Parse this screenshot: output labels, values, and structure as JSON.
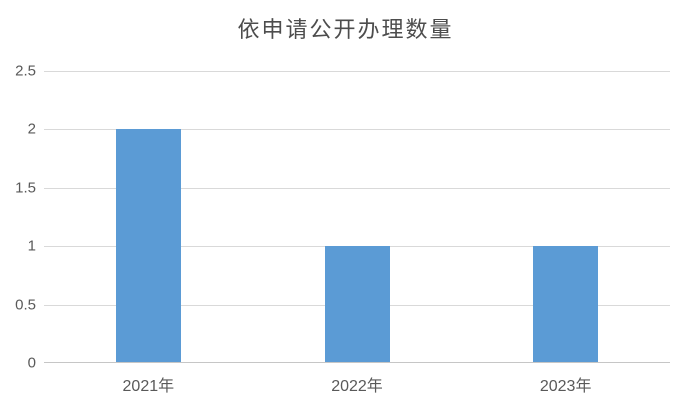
{
  "chart_data": {
    "type": "bar",
    "title": "依申请公开办理数量",
    "categories": [
      "2021年",
      "2022年",
      "2023年"
    ],
    "values": [
      2,
      1,
      1
    ],
    "xlabel": "",
    "ylabel": "",
    "ylim": [
      0,
      2.5
    ],
    "ytick_step": 0.5,
    "ytick_labels": [
      "0",
      "0.5",
      "1",
      "1.5",
      "2",
      "2.5"
    ],
    "grid": true,
    "legend": "none",
    "colors": {
      "bar": "#5B9BD5",
      "gridline": "#D9D9D9",
      "axis_line": "#C6C6C6",
      "axis_text": "#595959",
      "title_text": "#4D4D4D",
      "background": "#FFFFFF"
    }
  }
}
